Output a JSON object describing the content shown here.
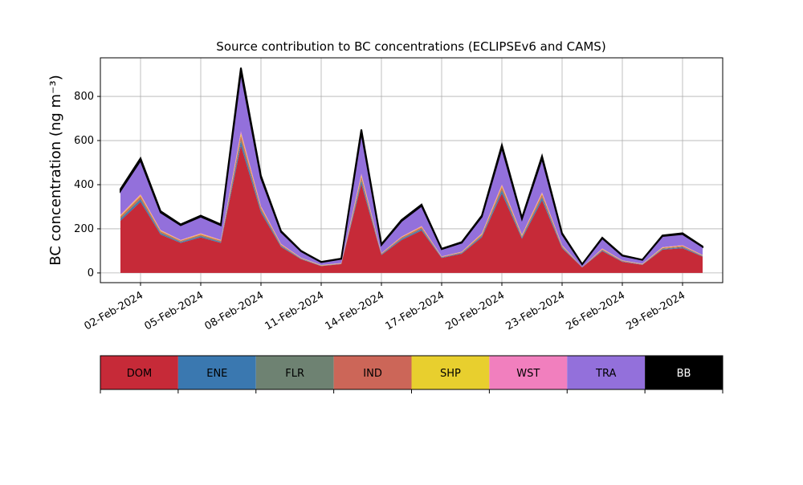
{
  "chart_data": {
    "type": "stacked_area",
    "title": "Source contribution to BC concentrations (ECLIPSEv6 and CAMS)",
    "y_label": "BC concentration (ng m⁻³)",
    "x": [
      "2024-02-01",
      "2024-02-02",
      "2024-02-03",
      "2024-02-04",
      "2024-02-05",
      "2024-02-06",
      "2024-02-07",
      "2024-02-08",
      "2024-02-09",
      "2024-02-10",
      "2024-02-11",
      "2024-02-12",
      "2024-02-13",
      "2024-02-14",
      "2024-02-15",
      "2024-02-16",
      "2024-02-17",
      "2024-02-18",
      "2024-02-19",
      "2024-02-20",
      "2024-02-21",
      "2024-02-22",
      "2024-02-23",
      "2024-02-24",
      "2024-02-25",
      "2024-02-26",
      "2024-02-27",
      "2024-02-28",
      "2024-02-29",
      "2024-03-01"
    ],
    "series": [
      {
        "name": "DOM",
        "color": "#c62a38",
        "values": [
          236,
          322,
          174,
          136,
          161,
          136,
          577,
          273,
          118,
          62,
          31,
          40,
          403,
          81,
          149,
          192,
          68,
          87,
          161,
          360,
          155,
          329,
          112,
          25,
          99,
          50,
          37,
          105,
          112,
          74
        ]
      },
      {
        "name": "ENE",
        "color": "#3a78b0",
        "values": [
          8,
          10,
          6,
          4,
          5,
          4,
          19,
          9,
          4,
          2,
          1,
          1,
          13,
          3,
          5,
          6,
          2,
          3,
          5,
          12,
          5,
          11,
          4,
          1,
          3,
          2,
          1,
          3,
          4,
          2
        ]
      },
      {
        "name": "FLR",
        "color": "#6e8272",
        "values": [
          4,
          5,
          3,
          2,
          3,
          2,
          9,
          4,
          2,
          1,
          1,
          1,
          7,
          1,
          2,
          3,
          1,
          1,
          3,
          6,
          3,
          5,
          2,
          0,
          2,
          1,
          1,
          2,
          2,
          1
        ]
      },
      {
        "name": "IND",
        "color": "#cc6658",
        "values": [
          8,
          10,
          6,
          4,
          5,
          4,
          19,
          9,
          4,
          2,
          1,
          1,
          13,
          3,
          5,
          6,
          2,
          3,
          5,
          12,
          5,
          11,
          4,
          1,
          3,
          2,
          1,
          3,
          4,
          2
        ]
      },
      {
        "name": "SHP",
        "color": "#e8cf2e",
        "values": [
          4,
          5,
          3,
          2,
          3,
          2,
          9,
          4,
          2,
          1,
          1,
          1,
          7,
          1,
          2,
          3,
          1,
          1,
          3,
          6,
          3,
          5,
          2,
          0,
          2,
          1,
          1,
          2,
          2,
          1
        ]
      },
      {
        "name": "WST",
        "color": "#f17fbe",
        "values": [
          4,
          5,
          3,
          2,
          3,
          2,
          9,
          4,
          2,
          1,
          1,
          1,
          7,
          1,
          2,
          3,
          1,
          1,
          3,
          6,
          3,
          5,
          2,
          0,
          2,
          1,
          1,
          2,
          2,
          1
        ]
      },
      {
        "name": "TRA",
        "color": "#9370db",
        "values": [
          108,
          153,
          79,
          66,
          75,
          66,
          269,
          128,
          54,
          29,
          13,
          19,
          187,
          37,
          70,
          91,
          33,
          41,
          75,
          166,
          71,
          153,
          50,
          12,
          46,
          21,
          17,
          50,
          50,
          37
        ]
      },
      {
        "name": "BB",
        "color": "#000000",
        "values": [
          8,
          10,
          6,
          4,
          5,
          4,
          19,
          9,
          4,
          2,
          1,
          1,
          13,
          3,
          5,
          6,
          2,
          3,
          5,
          12,
          5,
          11,
          4,
          1,
          3,
          2,
          1,
          3,
          4,
          2
        ]
      }
    ],
    "xlim": [
      "2024-01-31",
      "2024-03-02"
    ],
    "xticks": [
      {
        "value": "2024-02-02",
        "label": "02-Feb-2024"
      },
      {
        "value": "2024-02-05",
        "label": "05-Feb-2024"
      },
      {
        "value": "2024-02-08",
        "label": "08-Feb-2024"
      },
      {
        "value": "2024-02-11",
        "label": "11-Feb-2024"
      },
      {
        "value": "2024-02-14",
        "label": "14-Feb-2024"
      },
      {
        "value": "2024-02-17",
        "label": "17-Feb-2024"
      },
      {
        "value": "2024-02-20",
        "label": "20-Feb-2024"
      },
      {
        "value": "2024-02-23",
        "label": "23-Feb-2024"
      },
      {
        "value": "2024-02-26",
        "label": "26-Feb-2024"
      },
      {
        "value": "2024-02-29",
        "label": "29-Feb-2024"
      }
    ],
    "ylim": [
      -44,
      975
    ],
    "yticks": [
      0,
      200,
      400,
      600,
      800
    ],
    "grid": true
  }
}
